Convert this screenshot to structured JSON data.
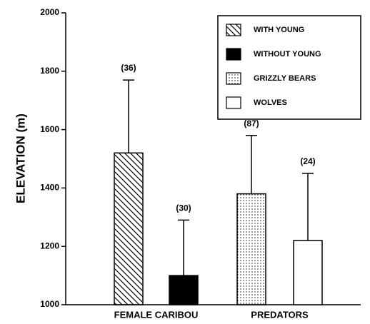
{
  "chart_data": {
    "type": "bar",
    "ylabel": "ELEVATION (m)",
    "categories": [
      "FEMALE CARIBOU",
      "PREDATORS"
    ],
    "series": [
      {
        "name": "WITH YOUNG",
        "pattern": "hatch",
        "color": "#000000",
        "values": [
          1520,
          null
        ],
        "errors": [
          250,
          null
        ],
        "annotations": [
          "(36)",
          null
        ]
      },
      {
        "name": "WITHOUT YOUNG",
        "pattern": "solid",
        "color": "#000000",
        "values": [
          1100,
          null
        ],
        "errors": [
          190,
          null
        ],
        "annotations": [
          "(30)",
          null
        ]
      },
      {
        "name": "GRIZZLY BEARS",
        "pattern": "dots",
        "color": "#000000",
        "values": [
          null,
          1380
        ],
        "errors": [
          null,
          200
        ],
        "annotations": [
          null,
          "(87)"
        ]
      },
      {
        "name": "WOLVES",
        "pattern": "none",
        "color": "#000000",
        "values": [
          null,
          1220
        ],
        "errors": [
          null,
          230
        ],
        "annotations": [
          null,
          "(24)"
        ]
      }
    ],
    "ylim": [
      1000,
      2000
    ],
    "yticks": [
      1000,
      1200,
      1400,
      1600,
      1800,
      2000
    ],
    "legend": "upper right"
  }
}
